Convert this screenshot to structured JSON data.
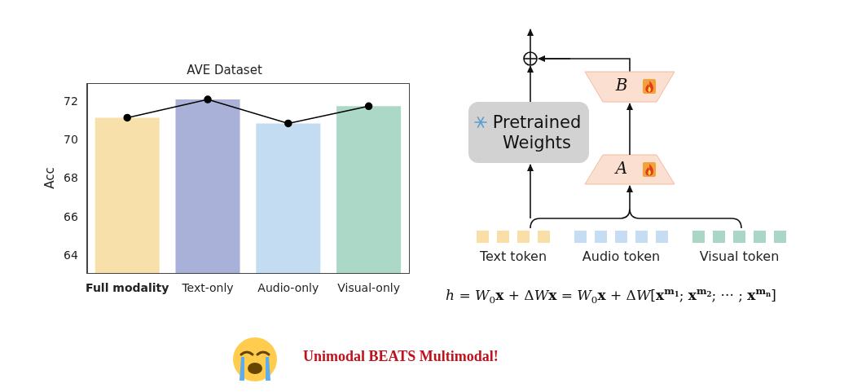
{
  "chart_data": {
    "type": "bar",
    "title": "AVE Dataset",
    "y_label": "Acc",
    "categories": [
      "Full modality",
      "Text-only",
      "Audio-only",
      "Visual-only"
    ],
    "series": [
      {
        "type": "bar",
        "colors": [
          "#f8e0aa",
          "#aab1d9",
          "#c4dcf1",
          "#abd8c7"
        ],
        "values": [
          71.2,
          72.15,
          70.9,
          71.8
        ]
      },
      {
        "type": "line",
        "color": "#000000",
        "marker": "circle",
        "line_style": "solid",
        "values": [
          71.2,
          72.15,
          70.9,
          71.8
        ]
      }
    ],
    "ylim": [
      63.1,
      73.0
    ],
    "yticks": [
      64,
      66,
      68,
      70,
      72
    ],
    "grid": false
  },
  "diagram": {
    "frozen_block": {
      "label": "Pretrained Weights"
    },
    "adapters": [
      {
        "label": "A"
      },
      {
        "label": "B"
      }
    ],
    "tokens": [
      {
        "label": "Text token",
        "count": 4,
        "color": "#f9dea8"
      },
      {
        "label": "Audio token",
        "count": 5,
        "color": "#c6dcf2"
      },
      {
        "label": "Visual token",
        "count": 5,
        "color": "#a9d6c5"
      }
    ],
    "formula": [
      {
        "text": "h",
        "style": "italic"
      },
      {
        "text": " = ",
        "style": "plain"
      },
      {
        "text": "W",
        "style": "italic"
      },
      {
        "text": "0",
        "style": "sub"
      },
      {
        "text": "x",
        "style": "bold"
      },
      {
        "text": " + Δ",
        "style": "plain"
      },
      {
        "text": "W",
        "style": "italic"
      },
      {
        "text": "x",
        "style": "bold"
      },
      {
        "text": " = ",
        "style": "plain"
      },
      {
        "text": "W",
        "style": "italic"
      },
      {
        "text": "0",
        "style": "sub"
      },
      {
        "text": "x",
        "style": "bold"
      },
      {
        "text": " + Δ",
        "style": "plain"
      },
      {
        "text": "W",
        "style": "italic"
      },
      {
        "text": "[",
        "style": "plain"
      },
      {
        "text": "x",
        "style": "bold"
      },
      {
        "text": "m",
        "style": "sup"
      },
      {
        "text": "1",
        "style": "supsub"
      },
      {
        "text": "; ",
        "style": "plain"
      },
      {
        "text": "x",
        "style": "bold"
      },
      {
        "text": "m",
        "style": "sup"
      },
      {
        "text": "2",
        "style": "supsub"
      },
      {
        "text": "; ··· ; ",
        "style": "plain"
      },
      {
        "text": "x",
        "style": "bold"
      },
      {
        "text": "m",
        "style": "sup"
      },
      {
        "text": "n",
        "style": "supsub"
      },
      {
        "text": "]",
        "style": "plain"
      }
    ]
  },
  "caption": {
    "text": "Unimodal BEATS Multimodal!",
    "color": "#c0121c"
  }
}
